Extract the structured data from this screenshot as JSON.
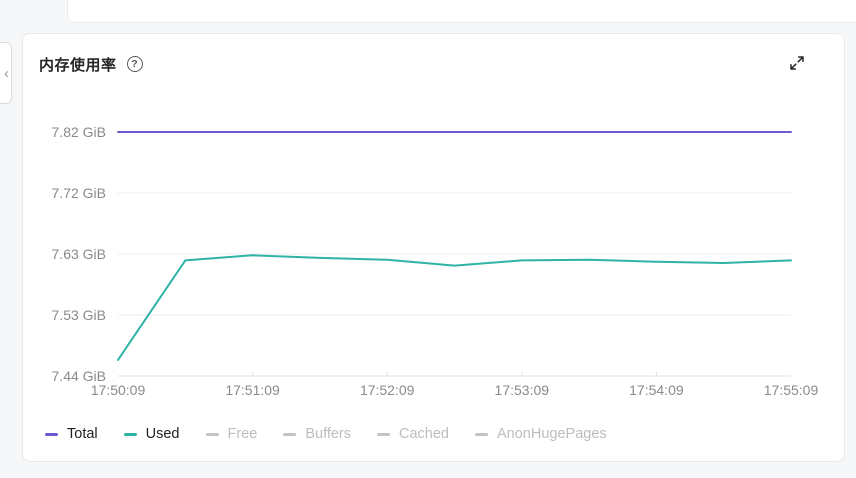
{
  "header": {
    "title": "内存使用率",
    "help_icon_glyph": "?"
  },
  "colors": {
    "total_line": "#6a5bd0",
    "used_line": "#2fb3a7",
    "grid_line": "#ededed",
    "axis_line": "#e2e2e2",
    "axis_text": "#8a8a8a",
    "legend_active_text": "#1f1f1f",
    "legend_inactive": "#c4c4c4",
    "card_background": "#ffffff",
    "page_background": "#f6f7f9"
  },
  "chart_data": {
    "type": "line",
    "title": "内存使用率",
    "unit": "GiB",
    "grid": true,
    "legend_position": "bottom-left",
    "ylim": [
      7.44,
      7.82
    ],
    "y_tick_labels": [
      "7.44 GiB",
      "7.53 GiB",
      "7.63 GiB",
      "7.72 GiB",
      "7.82 GiB"
    ],
    "x_tick_labels": [
      "17:50:09",
      "17:51:09",
      "17:52:09",
      "17:53:09",
      "17:54:09",
      "17:55:09"
    ],
    "x": [
      "17:50:09",
      "17:50:39",
      "17:51:09",
      "17:51:39",
      "17:52:09",
      "17:52:39",
      "17:53:09",
      "17:53:39",
      "17:54:09",
      "17:54:39",
      "17:55:09"
    ],
    "series": [
      {
        "name": "Total",
        "color": "#6a5bd0",
        "active": true,
        "values": [
          7.82,
          7.82,
          7.82,
          7.82,
          7.82,
          7.82,
          7.82,
          7.82,
          7.82,
          7.82,
          7.82
        ]
      },
      {
        "name": "Used",
        "color": "#2fb3a7",
        "active": true,
        "values": [
          7.465,
          7.62,
          7.628,
          7.624,
          7.621,
          7.612,
          7.62,
          7.621,
          7.618,
          7.616,
          7.62
        ]
      },
      {
        "name": "Free",
        "color": "#c4c4c4",
        "active": false,
        "values": []
      },
      {
        "name": "Buffers",
        "color": "#c4c4c4",
        "active": false,
        "values": []
      },
      {
        "name": "Cached",
        "color": "#c4c4c4",
        "active": false,
        "values": []
      },
      {
        "name": "AnonHugePages",
        "color": "#c4c4c4",
        "active": false,
        "values": []
      }
    ]
  }
}
